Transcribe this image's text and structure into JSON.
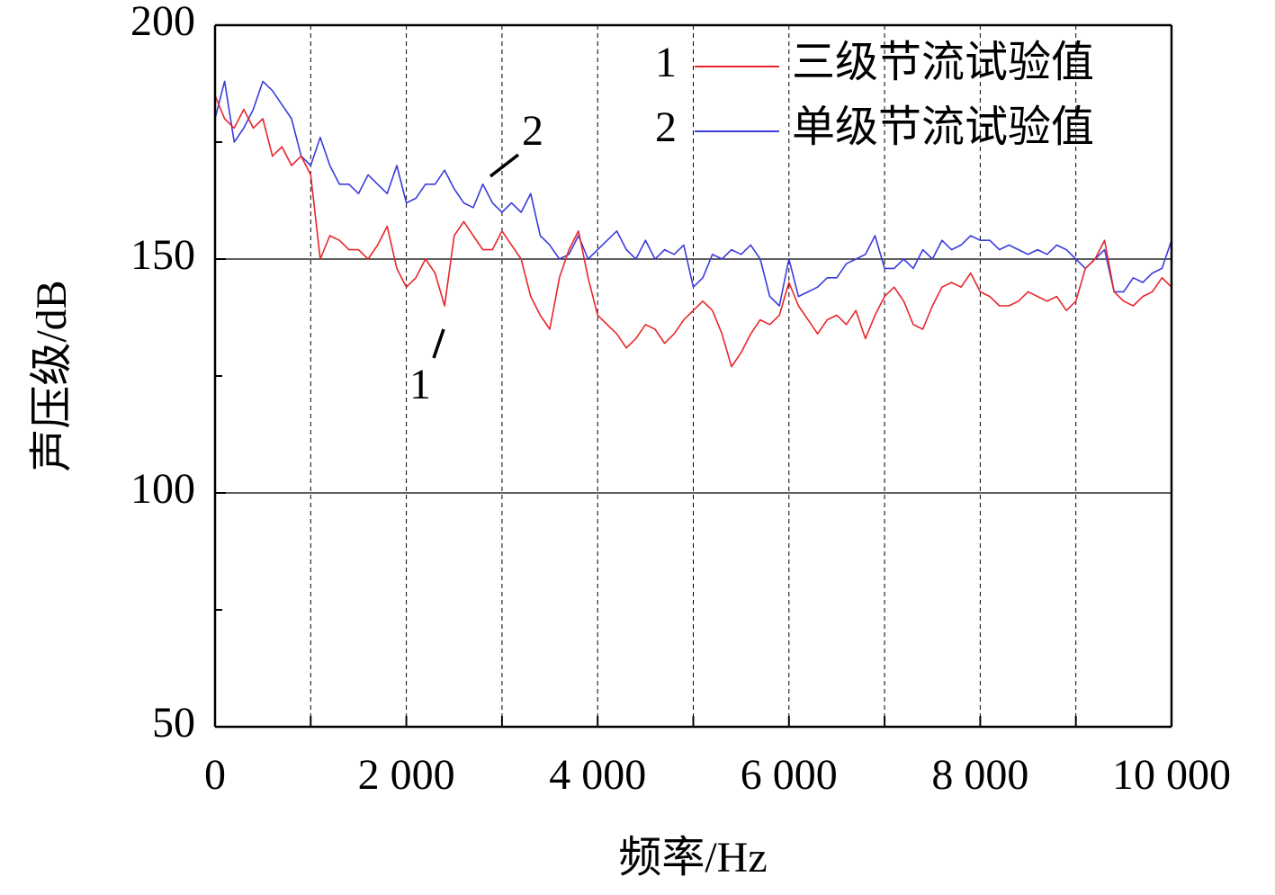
{
  "chart_data": {
    "type": "line",
    "xlabel": "频率/Hz",
    "ylabel": "声压级/dB",
    "x": [
      0,
      100,
      200,
      300,
      400,
      500,
      600,
      700,
      800,
      900,
      1000,
      1100,
      1200,
      1300,
      1400,
      1500,
      1600,
      1700,
      1800,
      1900,
      2000,
      2100,
      2200,
      2300,
      2400,
      2500,
      2600,
      2700,
      2800,
      2900,
      3000,
      3100,
      3200,
      3300,
      3400,
      3500,
      3600,
      3700,
      3800,
      3900,
      4000,
      4100,
      4200,
      4300,
      4400,
      4500,
      4600,
      4700,
      4800,
      4900,
      5000,
      5100,
      5200,
      5300,
      5400,
      5500,
      5600,
      5700,
      5800,
      5900,
      6000,
      6100,
      6200,
      6300,
      6400,
      6500,
      6600,
      6700,
      6800,
      6900,
      7000,
      7100,
      7200,
      7300,
      7400,
      7500,
      7600,
      7700,
      7800,
      7900,
      8000,
      8100,
      8200,
      8300,
      8400,
      8500,
      8600,
      8700,
      8800,
      8900,
      9000,
      9100,
      9200,
      9300,
      9400,
      9500,
      9600,
      9700,
      9800,
      9900,
      10000
    ],
    "series": [
      {
        "name": "三级节流试验值",
        "label": "1",
        "color": "#e8262b",
        "values": [
          185,
          180,
          178,
          182,
          178,
          180,
          172,
          174,
          170,
          172,
          168,
          150,
          155,
          154,
          152,
          152,
          150,
          153,
          157,
          148,
          144,
          146,
          150,
          147,
          140,
          155,
          158,
          155,
          152,
          152,
          156,
          153,
          150,
          142,
          138,
          135,
          146,
          152,
          156,
          146,
          138,
          136,
          134,
          131,
          133,
          136,
          135,
          132,
          134,
          137,
          139,
          141,
          139,
          134,
          127,
          130,
          134,
          137,
          136,
          138,
          145,
          140,
          137,
          134,
          137,
          138,
          136,
          139,
          133,
          138,
          142,
          144,
          141,
          136,
          135,
          140,
          144,
          145,
          144,
          147,
          143,
          142,
          140,
          140,
          141,
          143,
          142,
          141,
          142,
          139,
          141,
          148,
          150,
          154,
          143,
          141,
          140,
          142,
          143,
          146,
          144
        ]
      },
      {
        "name": "单级节流试验值",
        "label": "2",
        "color": "#3b3bdc",
        "values": [
          180,
          188,
          175,
          178,
          182,
          188,
          186,
          183,
          180,
          172,
          170,
          176,
          170,
          166,
          166,
          164,
          168,
          166,
          164,
          170,
          162,
          163,
          166,
          166,
          169,
          165,
          162,
          161,
          166,
          162,
          160,
          162,
          160,
          164,
          155,
          153,
          150,
          151,
          155,
          150,
          152,
          154,
          156,
          152,
          150,
          154,
          150,
          152,
          151,
          153,
          144,
          146,
          151,
          150,
          152,
          151,
          153,
          150,
          142,
          140,
          150,
          142,
          143,
          144,
          146,
          146,
          149,
          150,
          151,
          155,
          148,
          148,
          150,
          148,
          152,
          150,
          154,
          152,
          153,
          155,
          154,
          154,
          152,
          153,
          152,
          151,
          152,
          151,
          153,
          152,
          150,
          148,
          150,
          152,
          143,
          143,
          146,
          145,
          147,
          148,
          154
        ]
      }
    ],
    "annotations": [
      "1",
      "2"
    ],
    "xlim": [
      0,
      10000
    ],
    "xticks": [
      0,
      {
        "value": 2000,
        "label": "2 000"
      },
      {
        "value": 4000,
        "label": "4 000"
      },
      {
        "value": 6000,
        "label": "6 000"
      },
      {
        "value": 8000,
        "label": "8 000"
      },
      {
        "value": 10000,
        "label": "10 000"
      }
    ],
    "xminorticks": [
      1000,
      3000,
      5000,
      7000,
      9000
    ],
    "ylim": [
      50,
      200
    ],
    "yticks": [
      50,
      100,
      150,
      200
    ],
    "yminorticks": [
      75,
      125,
      175
    ],
    "grid": true,
    "legend": "upper right"
  }
}
